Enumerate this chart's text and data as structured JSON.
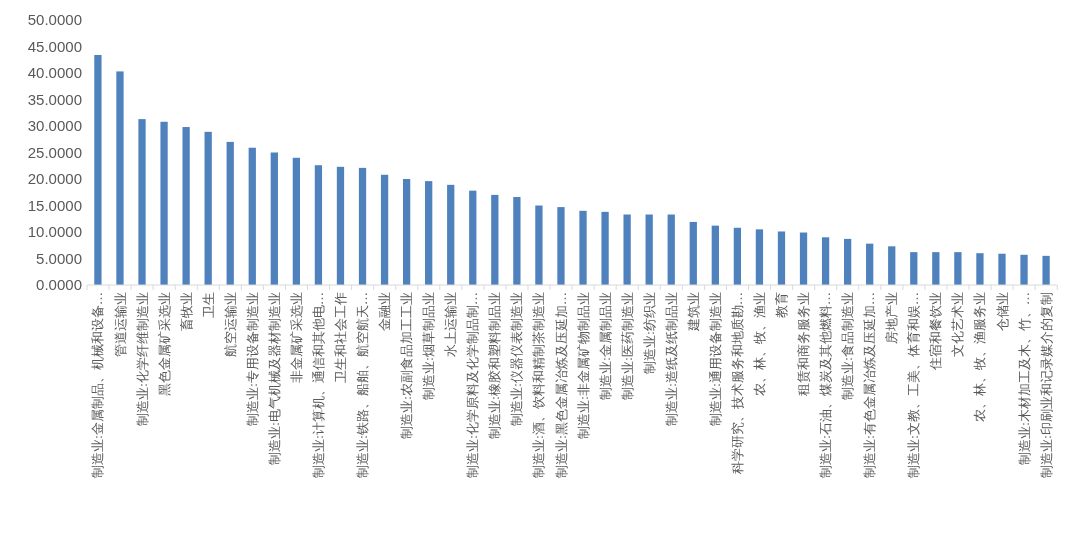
{
  "chart_data": {
    "type": "bar",
    "categories": [
      "制造业:金属制品、机械和设备…",
      "管道运输业",
      "制造业:化学纤维制造业",
      "黑色金属矿采选业",
      "畜牧业",
      "卫生",
      "航空运输业",
      "制造业:专用设备制造业",
      "制造业:电气机械及器材制造业",
      "非金属矿采选业",
      "制造业:计算机、通信和其他电…",
      "卫生和社会工作",
      "制造业:铁路、船舶、航空航天…",
      "金融业",
      "制造业:农副食品加工工业",
      "制造业:烟草制品业",
      "水上运输业",
      "制造业:化学原料及化学制品制…",
      "制造业:橡胶和塑料制品业",
      "制造业:仪器仪表制造业",
      "制造业:酒、饮料和精制茶制造业",
      "制造业:黑色金属冶炼及压延加…",
      "制造业:非金属矿物制品业",
      "制造业:金属制品业",
      "制造业:医药制造业",
      "制造业:纺织业",
      "制造业:造纸及纸制品业",
      "建筑业",
      "制造业:通用设备制造业",
      "科学研究、技术服务和地质勘…",
      "农、林、牧、渔业",
      "教育",
      "租赁和商务服务业",
      "制造业:石油、煤炭及其他燃料…",
      "制造业:食品制造业",
      "制造业:有色金属冶炼及压延加…",
      "房地产业",
      "制造业:文教、工美、体育和娱…",
      "住宿和餐饮业",
      "文化艺术业",
      "农、林、牧、渔服务业",
      "仓储业",
      "制造业:木材加工及木、竹、…",
      "制造业:印刷业和记录媒介的复制"
    ],
    "values": [
      43.4,
      40.3,
      31.3,
      30.8,
      29.8,
      28.9,
      27.0,
      25.9,
      25.0,
      24.0,
      22.6,
      22.3,
      22.1,
      20.8,
      20.0,
      19.6,
      18.9,
      17.8,
      17.0,
      16.6,
      15.0,
      14.7,
      14.0,
      13.8,
      13.3,
      13.3,
      13.3,
      11.9,
      11.2,
      10.8,
      10.5,
      10.1,
      9.9,
      9.0,
      8.7,
      7.8,
      7.3,
      6.2,
      6.2,
      6.2,
      6.0,
      5.9,
      5.7,
      5.5
    ],
    "color": "#4f81bd",
    "ylim": [
      0,
      50
    ],
    "yticks": [
      {
        "value": 0,
        "label": "0.0000"
      },
      {
        "value": 5,
        "label": "5.0000"
      },
      {
        "value": 10,
        "label": "10.0000"
      },
      {
        "value": 15,
        "label": "15.0000"
      },
      {
        "value": 20,
        "label": "20.0000"
      },
      {
        "value": 25,
        "label": "25.0000"
      },
      {
        "value": 30,
        "label": "30.0000"
      },
      {
        "value": 35,
        "label": "35.0000"
      },
      {
        "value": 40,
        "label": "40.0000"
      },
      {
        "value": 45,
        "label": "45.0000"
      },
      {
        "value": 50,
        "label": "50.0000"
      }
    ],
    "grid": false
  }
}
